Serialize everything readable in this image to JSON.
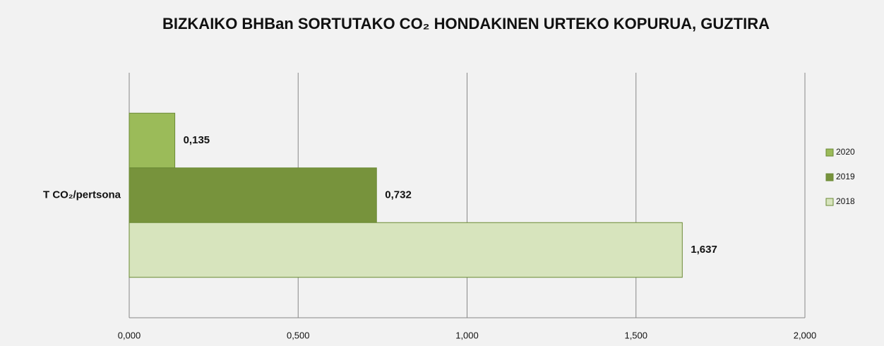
{
  "chart_data": {
    "type": "hbar",
    "title": "BIZKAIKO BHBan SORTUTAKO CO₂ HONDAKINEN URTEKO KOPURUA, GUZTIRA",
    "categories": [
      "T CO₂/pertsona"
    ],
    "series": [
      {
        "name": "2020",
        "color": "#9bbb59",
        "values": [
          0.135
        ],
        "value_labels": [
          "0,135"
        ]
      },
      {
        "name": "2019",
        "color": "#77933c",
        "values": [
          0.732
        ],
        "value_labels": [
          "0,732"
        ]
      },
      {
        "name": "2018",
        "color": "#d7e4bd",
        "values": [
          1.637
        ],
        "value_labels": [
          "1,637"
        ]
      }
    ],
    "xlim": [
      0,
      2
    ],
    "xticks": [
      {
        "value": 0,
        "label": "0,000"
      },
      {
        "value": 0.5,
        "label": "0,500"
      },
      {
        "value": 1,
        "label": "1,000"
      },
      {
        "value": 1.5,
        "label": "1,500"
      },
      {
        "value": 2,
        "label": "2,000"
      }
    ],
    "grid": true,
    "legend": "right"
  }
}
